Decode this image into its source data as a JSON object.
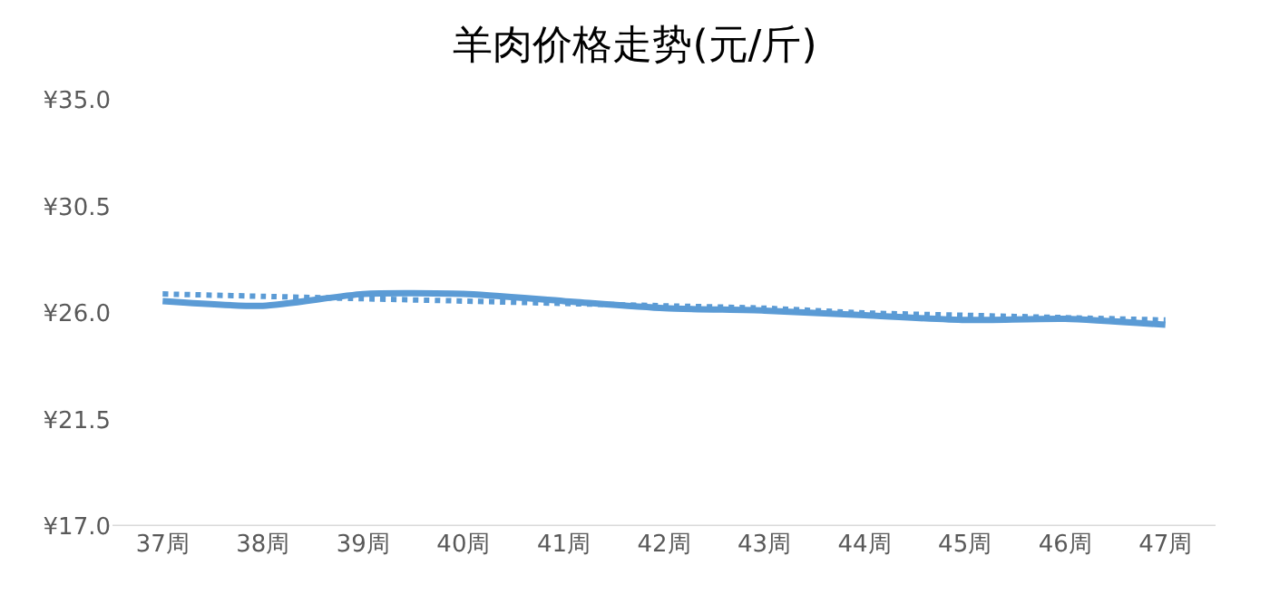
{
  "chart_data": {
    "type": "line",
    "title": "羊肉价格走势(元/斤)",
    "categories": [
      "37周",
      "38周",
      "39周",
      "40周",
      "41周",
      "42周",
      "43周",
      "44周",
      "45周",
      "46周",
      "47周"
    ],
    "series": [
      {
        "color": "#5b9bd5",
        "line_style": "solid",
        "values": [
          26.5,
          26.3,
          26.8,
          26.8,
          26.5,
          26.2,
          26.1,
          25.9,
          25.7,
          25.75,
          25.5
        ]
      },
      {
        "color": "#5b9bd5",
        "line_style": "dotted",
        "values": [
          26.8,
          26.7,
          26.6,
          26.5,
          26.4,
          26.3,
          26.2,
          26.0,
          25.9,
          25.8,
          25.7
        ]
      }
    ],
    "ylim": [
      17.0,
      35.0
    ],
    "yticks": [
      {
        "value": 17.0,
        "label": "¥17.0"
      },
      {
        "value": 21.5,
        "label": "¥21.5"
      },
      {
        "value": 26.0,
        "label": "¥26.0"
      },
      {
        "value": 30.5,
        "label": "¥30.5"
      },
      {
        "value": 35.0,
        "label": "¥35.0"
      }
    ],
    "marker": "none"
  }
}
